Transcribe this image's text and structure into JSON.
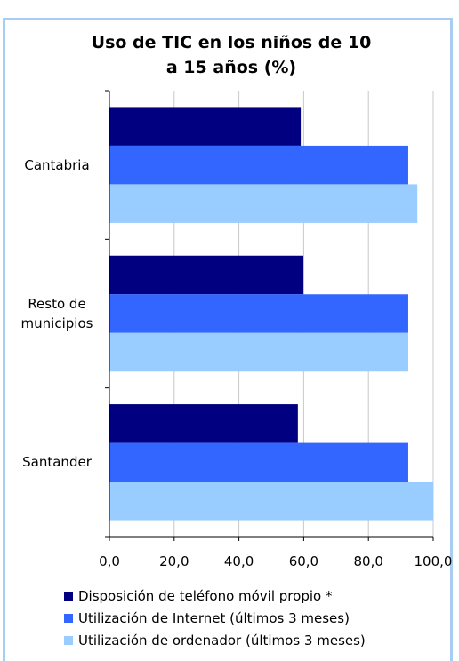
{
  "chart_data": {
    "type": "barh",
    "title": "Uso de TIC en los niños de 10 a 15 años (%)",
    "categories": [
      "Cantabria",
      "Resto de municipios",
      "Santander"
    ],
    "series": [
      {
        "name": "Disposición de teléfono móvil propio *",
        "color": "#000080",
        "values": [
          59.1,
          59.9,
          58.2
        ]
      },
      {
        "name": "Utilización de Internet (últimos 3 meses)",
        "color": "#3366ff",
        "values": [
          92.3,
          92.3,
          92.3
        ]
      },
      {
        "name": "Utilización de ordenador (últimos 3 meses)",
        "color": "#99ccff",
        "values": [
          95.1,
          92.3,
          100
        ]
      }
    ],
    "xlim": [
      0,
      100
    ],
    "xticks": [
      {
        "value": 0,
        "label": "0,0"
      },
      {
        "value": 20,
        "label": "20,0"
      },
      {
        "value": 40,
        "label": "40,0"
      },
      {
        "value": 60,
        "label": "60,0"
      },
      {
        "value": 80,
        "label": "80,0"
      },
      {
        "value": 100,
        "label": "100,0"
      }
    ],
    "grid": true
  }
}
